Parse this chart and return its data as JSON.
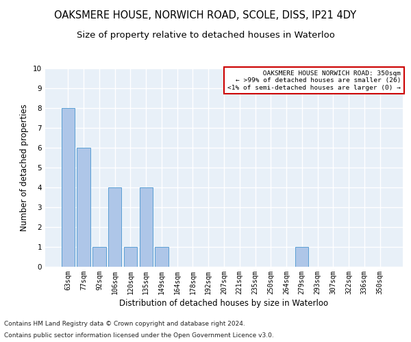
{
  "title": "OAKSMERE HOUSE, NORWICH ROAD, SCOLE, DISS, IP21 4DY",
  "subtitle": "Size of property relative to detached houses in Waterloo",
  "xlabel": "Distribution of detached houses by size in Waterloo",
  "ylabel": "Number of detached properties",
  "categories": [
    "63sqm",
    "77sqm",
    "92sqm",
    "106sqm",
    "120sqm",
    "135sqm",
    "149sqm",
    "164sqm",
    "178sqm",
    "192sqm",
    "207sqm",
    "221sqm",
    "235sqm",
    "250sqm",
    "264sqm",
    "279sqm",
    "293sqm",
    "307sqm",
    "322sqm",
    "336sqm",
    "350sqm"
  ],
  "values": [
    8,
    6,
    1,
    4,
    1,
    4,
    1,
    0,
    0,
    0,
    0,
    0,
    0,
    0,
    0,
    1,
    0,
    0,
    0,
    0,
    0
  ],
  "bar_color": "#aec6e8",
  "bar_edge_color": "#5a9fd4",
  "annotation_box_color": "#cc0000",
  "annotation_text_line1": " OAKSMERE HOUSE NORWICH ROAD: 350sqm",
  "annotation_text_line2": "← >99% of detached houses are smaller (26)",
  "annotation_text_line3": "<1% of semi-detached houses are larger (0) →",
  "ylim": [
    0,
    10
  ],
  "yticks": [
    0,
    1,
    2,
    3,
    4,
    5,
    6,
    7,
    8,
    9,
    10
  ],
  "footnote1": "Contains HM Land Registry data © Crown copyright and database right 2024.",
  "footnote2": "Contains public sector information licensed under the Open Government Licence v3.0.",
  "background_color": "#e8f0f8",
  "grid_color": "#ffffff",
  "title_fontsize": 10.5,
  "subtitle_fontsize": 9.5,
  "label_fontsize": 8.5,
  "tick_fontsize": 7,
  "footnote_fontsize": 6.5
}
